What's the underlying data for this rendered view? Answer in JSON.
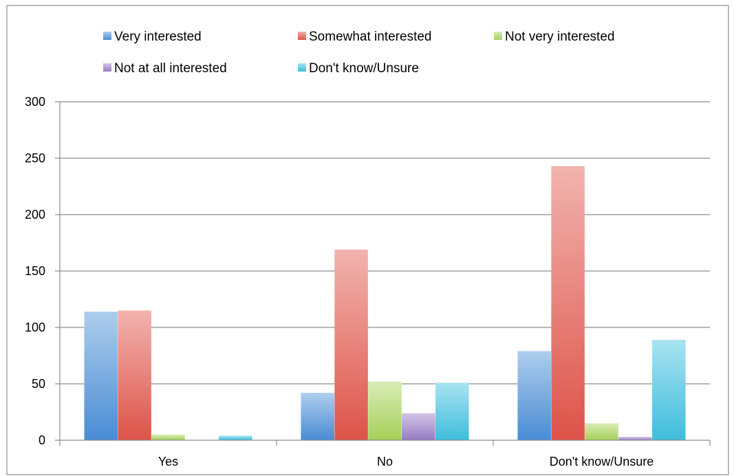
{
  "chart_data": {
    "type": "bar",
    "title": "",
    "xlabel": "",
    "ylabel": "",
    "categories": [
      "Yes",
      "No",
      "Don't know/Unsure"
    ],
    "ylim": [
      0,
      300
    ],
    "yticks": [
      0,
      50,
      100,
      150,
      200,
      250,
      300
    ],
    "grid": "horizontal",
    "legend_position": "top",
    "series": [
      {
        "name": "Very interested",
        "color": "#4a8fd8",
        "values": [
          114,
          42,
          79
        ]
      },
      {
        "name": "Somewhat interested",
        "color": "#e2554a",
        "values": [
          115,
          169,
          243
        ]
      },
      {
        "name": "Not very interested",
        "color": "#a8d45a",
        "values": [
          5,
          52,
          15
        ]
      },
      {
        "name": "Not at all interested",
        "color": "#9a7fc6",
        "values": [
          0,
          24,
          3
        ]
      },
      {
        "name": "Don't know/Unsure",
        "color": "#3fc1e0",
        "values": [
          4,
          51,
          89
        ]
      }
    ]
  }
}
